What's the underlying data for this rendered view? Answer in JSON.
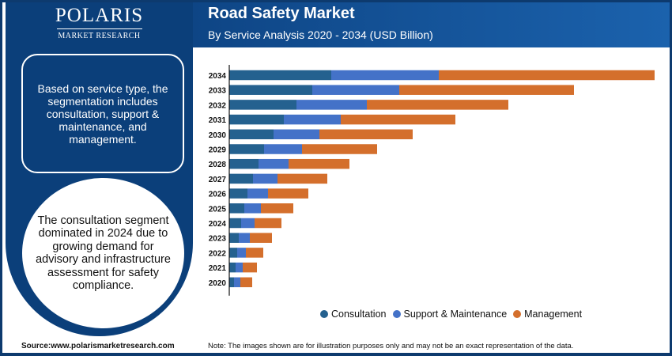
{
  "logo": {
    "name": "POLARIS",
    "sub": "MARKET RESEARCH"
  },
  "header": {
    "title": "Road Safety Market",
    "subtitle": "By Service Analysis 2020 - 2034 (USD Billion)"
  },
  "left": {
    "box_text": "Based on service type, the segmentation includes consultation, support & maintenance, and management.",
    "circle_text": "The consultation segment dominated in 2024 due to growing demand for advisory and infrastructure assessment for safety compliance."
  },
  "footer": {
    "source": "Source:www.polarismarketresearch.com",
    "note": "Note: The images shown are for illustration purposes only and may not be an exact representation of the data."
  },
  "chart_data": {
    "type": "bar",
    "orientation": "horizontal",
    "stacked": true,
    "title": "Road Safety Market",
    "subtitle": "By Service Analysis 2020 - 2034 (USD Billion)",
    "categories": [
      "2034",
      "2033",
      "2032",
      "2031",
      "2030",
      "2029",
      "2028",
      "2027",
      "2026",
      "2025",
      "2024",
      "2023",
      "2022",
      "2021",
      "2020"
    ],
    "series": [
      {
        "name": "Consultation",
        "color": "#24618f",
        "values": [
          12.9,
          10.5,
          8.5,
          6.9,
          5.6,
          4.4,
          3.7,
          3.0,
          2.3,
          1.9,
          1.5,
          1.2,
          1.0,
          0.8,
          0.6
        ]
      },
      {
        "name": "Support & Maintenance",
        "color": "#4472c8",
        "values": [
          13.6,
          11.0,
          8.9,
          7.2,
          5.8,
          4.8,
          3.8,
          3.1,
          2.6,
          2.1,
          1.7,
          1.4,
          1.1,
          0.9,
          0.8
        ]
      },
      {
        "name": "Management",
        "color": "#d46f2c",
        "values": [
          27.3,
          22.1,
          17.9,
          14.5,
          11.8,
          9.5,
          7.7,
          6.3,
          5.1,
          4.1,
          3.4,
          2.8,
          2.2,
          1.8,
          1.5
        ]
      }
    ],
    "xlim": [
      0,
      56
    ],
    "axis_values_shown": false,
    "grid": false,
    "legend": "bottom"
  }
}
